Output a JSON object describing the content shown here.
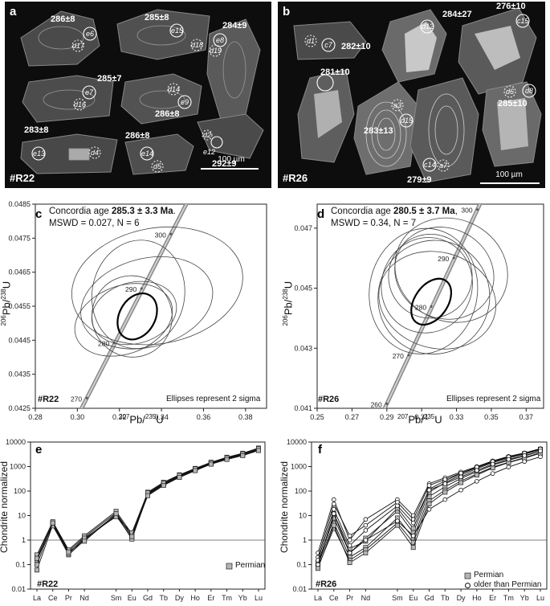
{
  "panel_a": {
    "label": "a",
    "sample": "#R22",
    "scale_bar": "100 µm",
    "ages": [
      "286±8",
      "285±8",
      "284±9",
      "285±7",
      "286±8",
      "283±8",
      "286±8",
      "292±9"
    ],
    "spots": [
      "e6",
      "d17",
      "e15",
      "d18",
      "e8",
      "d19",
      "e7",
      "d16",
      "d14",
      "e9",
      "e13",
      "d4",
      "e14",
      "d5",
      "d2",
      "e12"
    ]
  },
  "panel_b": {
    "label": "b",
    "sample": "#R26",
    "scale_bar": "100 µm",
    "ages": [
      "282±10",
      "284±27",
      "276±10",
      "281±10",
      "283±13",
      "285±10",
      "279±9"
    ],
    "spots": [
      "d1",
      "c7",
      "d12",
      "c15",
      "a3",
      "d15",
      "d6",
      "d8",
      "c14",
      "a7"
    ]
  },
  "panel_c": {
    "label": "c",
    "sample": "#R22",
    "concordia_prefix": "Concordia age ",
    "concordia_value": "285.3 ± 3.3 Ma",
    "concordia_suffix": ".",
    "mswd": "MSWD = 0.027, N =  6",
    "note": "Ellipses represent 2 sigma",
    "xlabel_pre": "207",
    "xlabel_mid": "Pb/",
    "xlabel_sup2": "235",
    "xlabel_post": "U",
    "ylabel_pre": "206",
    "ylabel_mid": "Pb/",
    "ylabel_sup2": "238",
    "ylabel_post": "U",
    "concordia_ticks": [
      "270",
      "280",
      "290",
      "300"
    ]
  },
  "panel_d": {
    "label": "d",
    "sample": "#R26",
    "concordia_prefix": "Concordia age ",
    "concordia_value": "280.5 ± 3.7 Ma",
    "concordia_suffix": ",",
    "mswd": "MSWD = 0.34, N =  7",
    "note": "Ellipses represent 2 sigma",
    "xlabel_pre": "207",
    "xlabel_mid": "Pb/",
    "xlabel_sup2": "235",
    "xlabel_post": "U",
    "ylabel_pre": "206",
    "ylabel_mid": "Pb/",
    "ylabel_sup2": "238",
    "ylabel_post": "U",
    "concordia_ticks": [
      "260",
      "270",
      "280",
      "290",
      "300"
    ]
  },
  "panel_e": {
    "label": "e",
    "sample": "#R22",
    "ylabel": "Chondrite normalized",
    "legend": [
      "Permian"
    ]
  },
  "panel_f": {
    "label": "f",
    "sample": "#R26",
    "ylabel": "Chondrite normalized",
    "legend": [
      "Permian",
      "older than Permian"
    ]
  },
  "chart_data": [
    {
      "id": "c",
      "type": "scatter",
      "title": "Concordia age 285.3 ± 3.3 Ma.",
      "xlabel": "207Pb/235U",
      "ylabel": "206Pb/238U",
      "xlim": [
        0.28,
        0.39
      ],
      "ylim": [
        0.0425,
        0.0485
      ],
      "xticks": [
        "0.28",
        "0.30",
        "0.32",
        "0.34",
        "0.36",
        "0.38"
      ],
      "yticks": [
        "0.0425",
        "0.0435",
        "0.0445",
        "0.0455",
        "0.0465",
        "0.0475",
        "0.0485"
      ],
      "concordia": [
        {
          "age": 270,
          "x": 0.3045,
          "y": 0.0428
        },
        {
          "age": 280,
          "x": 0.3175,
          "y": 0.04442
        },
        {
          "age": 290,
          "x": 0.3305,
          "y": 0.04602
        },
        {
          "age": 300,
          "x": 0.3445,
          "y": 0.04762
        }
      ],
      "ellipses": [
        {
          "cx": 0.327,
          "cy": 0.0453,
          "rx": 0.0205,
          "ry": 0.0009,
          "rot": -15
        },
        {
          "cx": 0.333,
          "cy": 0.0456,
          "rx": 0.032,
          "ry": 0.0013,
          "rot": -15
        },
        {
          "cx": 0.322,
          "cy": 0.0451,
          "rx": 0.024,
          "ry": 0.001,
          "rot": -20
        },
        {
          "cx": 0.329,
          "cy": 0.04585,
          "rx": 0.022,
          "ry": 0.0016,
          "rot": 10
        },
        {
          "cx": 0.338,
          "cy": 0.0461,
          "rx": 0.041,
          "ry": 0.0017,
          "rot": -10
        },
        {
          "cx": 0.326,
          "cy": 0.0452,
          "rx": 0.019,
          "ry": 0.0012,
          "rot": -25
        }
      ],
      "concordia_ellipse": {
        "cx": 0.3285,
        "cy": 0.0452,
        "rx": 0.0085,
        "ry": 0.00072,
        "rot": 30
      }
    },
    {
      "id": "d",
      "type": "scatter",
      "title": "Concordia age 280.5 ± 3.7 Ma,",
      "xlabel": "207Pb/235U",
      "ylabel": "206Pb/238U",
      "xlim": [
        0.25,
        0.38
      ],
      "ylim": [
        0.041,
        0.0478
      ],
      "xticks": [
        "0.25",
        "0.27",
        "0.29",
        "0.31",
        "0.33",
        "0.35",
        "0.37"
      ],
      "yticks": [
        "0.041",
        "0.043",
        "0.045",
        "0.047"
      ],
      "concordia": [
        {
          "age": 260,
          "x": 0.29,
          "y": 0.04115
        },
        {
          "age": 270,
          "x": 0.3025,
          "y": 0.04277
        },
        {
          "age": 280,
          "x": 0.3155,
          "y": 0.04439
        },
        {
          "age": 290,
          "x": 0.3285,
          "y": 0.04601
        },
        {
          "age": 300,
          "x": 0.342,
          "y": 0.04762
        }
      ],
      "ellipses": [
        {
          "cx": 0.313,
          "cy": 0.0451,
          "rx": 0.026,
          "ry": 0.0016,
          "rot": 20
        },
        {
          "cx": 0.317,
          "cy": 0.0447,
          "rx": 0.032,
          "ry": 0.0019,
          "rot": 20
        },
        {
          "cx": 0.323,
          "cy": 0.0455,
          "rx": 0.029,
          "ry": 0.0015,
          "rot": 25
        },
        {
          "cx": 0.319,
          "cy": 0.0446,
          "rx": 0.034,
          "ry": 0.0016,
          "rot": 15
        },
        {
          "cx": 0.327,
          "cy": 0.0456,
          "rx": 0.033,
          "ry": 0.0017,
          "rot": 25
        },
        {
          "cx": 0.311,
          "cy": 0.0449,
          "rx": 0.031,
          "ry": 0.0021,
          "rot": 10
        },
        {
          "cx": 0.315,
          "cy": 0.0454,
          "rx": 0.024,
          "ry": 0.0014,
          "rot": 30
        }
      ],
      "concordia_ellipse": {
        "cx": 0.3155,
        "cy": 0.04455,
        "rx": 0.0095,
        "ry": 0.00085,
        "rot": 35
      }
    },
    {
      "id": "e",
      "type": "line",
      "ylabel": "Chondrite normalized",
      "log_y": true,
      "ylim": [
        0.01,
        10000
      ],
      "yticks": [
        "0.01",
        "0.1",
        "1",
        "10",
        "100",
        "1000",
        "10000"
      ],
      "categories": [
        "La",
        "Ce",
        "Pr",
        "Nd",
        "Sm",
        "Eu",
        "Gd",
        "Tb",
        "Dy",
        "Ho",
        "Er",
        "Tm",
        "Yb",
        "Lu"
      ],
      "x_positions": [
        0,
        1,
        2,
        3,
        5,
        6,
        7,
        8,
        9,
        10,
        11,
        12,
        13,
        14
      ],
      "series": [
        {
          "name": "Permian",
          "values": [
            0.2,
            5.2,
            0.35,
            1.3,
            13,
            1.5,
            80,
            200,
            420,
            780,
            1400,
            2200,
            3200,
            5200
          ]
        },
        {
          "name": "Permian",
          "values": [
            0.06,
            4.2,
            0.25,
            1.0,
            10,
            1.2,
            70,
            180,
            380,
            700,
            1300,
            2000,
            2900,
            4700
          ]
        },
        {
          "name": "Permian",
          "values": [
            0.25,
            5.6,
            0.4,
            1.5,
            15,
            1.8,
            90,
            230,
            460,
            840,
            1500,
            2400,
            3500,
            5700
          ]
        },
        {
          "name": "Permian",
          "values": [
            0.15,
            4.6,
            0.3,
            1.1,
            11,
            1.1,
            75,
            190,
            400,
            730,
            1350,
            2100,
            3000,
            4900
          ]
        },
        {
          "name": "Permian",
          "values": [
            0.18,
            3.8,
            0.28,
            1.2,
            9,
            2.0,
            85,
            210,
            440,
            810,
            1450,
            2300,
            3300,
            5400
          ]
        },
        {
          "name": "Permian",
          "values": [
            0.1,
            5.0,
            0.33,
            0.9,
            12,
            1.4,
            65,
            170,
            360,
            680,
            1250,
            1950,
            2800,
            4500
          ]
        }
      ],
      "legend": [
        "Permian"
      ],
      "hline": 1
    },
    {
      "id": "f",
      "type": "line",
      "ylabel": "Chondrite normalized",
      "log_y": true,
      "ylim": [
        0.01,
        10000
      ],
      "yticks": [
        "0.01",
        "0.1",
        "1",
        "10",
        "100",
        "1000",
        "10000"
      ],
      "categories": [
        "La",
        "Ce",
        "Pr",
        "Nd",
        "Sm",
        "Eu",
        "Gd",
        "Tb",
        "Dy",
        "Ho",
        "Er",
        "Tm",
        "Yb",
        "Lu"
      ],
      "x_positions": [
        0,
        1,
        2,
        3,
        5,
        6,
        7,
        8,
        9,
        10,
        11,
        12,
        13,
        14
      ],
      "series": [
        {
          "name": "Permian",
          "values": [
            0.1,
            5,
            0.2,
            0.5,
            8,
            1.2,
            60,
            150,
            330,
            620,
            1150,
            1800,
            2700,
            4200
          ]
        },
        {
          "name": "Permian",
          "values": [
            0.08,
            3,
            0.15,
            0.4,
            5,
            0.8,
            40,
            110,
            260,
            500,
            950,
            1500,
            2300,
            3700
          ]
        },
        {
          "name": "Permian",
          "values": [
            0.12,
            8,
            0.3,
            1.2,
            15,
            2,
            90,
            220,
            450,
            820,
            1450,
            2200,
            3200,
            4800
          ]
        },
        {
          "name": "Permian",
          "values": [
            0.09,
            12,
            0.45,
            0.9,
            20,
            3,
            120,
            260,
            520,
            900,
            1550,
            2400,
            3400,
            5100
          ]
        },
        {
          "name": "Permian",
          "values": [
            0.07,
            4,
            0.12,
            0.3,
            4,
            0.5,
            30,
            90,
            220,
            450,
            880,
            1450,
            2200,
            3500
          ]
        },
        {
          "name": "older than Permian",
          "values": [
            0.3,
            45,
            1,
            7,
            45,
            10,
            200,
            350,
            600,
            1000,
            1700,
            2600,
            3600,
            5400
          ]
        },
        {
          "name": "older than Permian",
          "values": [
            0.2,
            30,
            1.5,
            4,
            35,
            7,
            170,
            300,
            540,
            950,
            1600,
            2500,
            3500,
            5200
          ]
        },
        {
          "name": "older than Permian",
          "values": [
            0.15,
            18,
            0.6,
            2.5,
            25,
            5,
            110,
            200,
            380,
            700,
            1250,
            1950,
            2800,
            4300
          ]
        },
        {
          "name": "older than Permian",
          "values": [
            0.1,
            12,
            0.3,
            1,
            6,
            1.5,
            18,
            45,
            110,
            250,
            520,
            950,
            1600,
            2500
          ]
        }
      ],
      "legend": [
        "Permian",
        "older than Permian"
      ],
      "hline": 1
    }
  ]
}
